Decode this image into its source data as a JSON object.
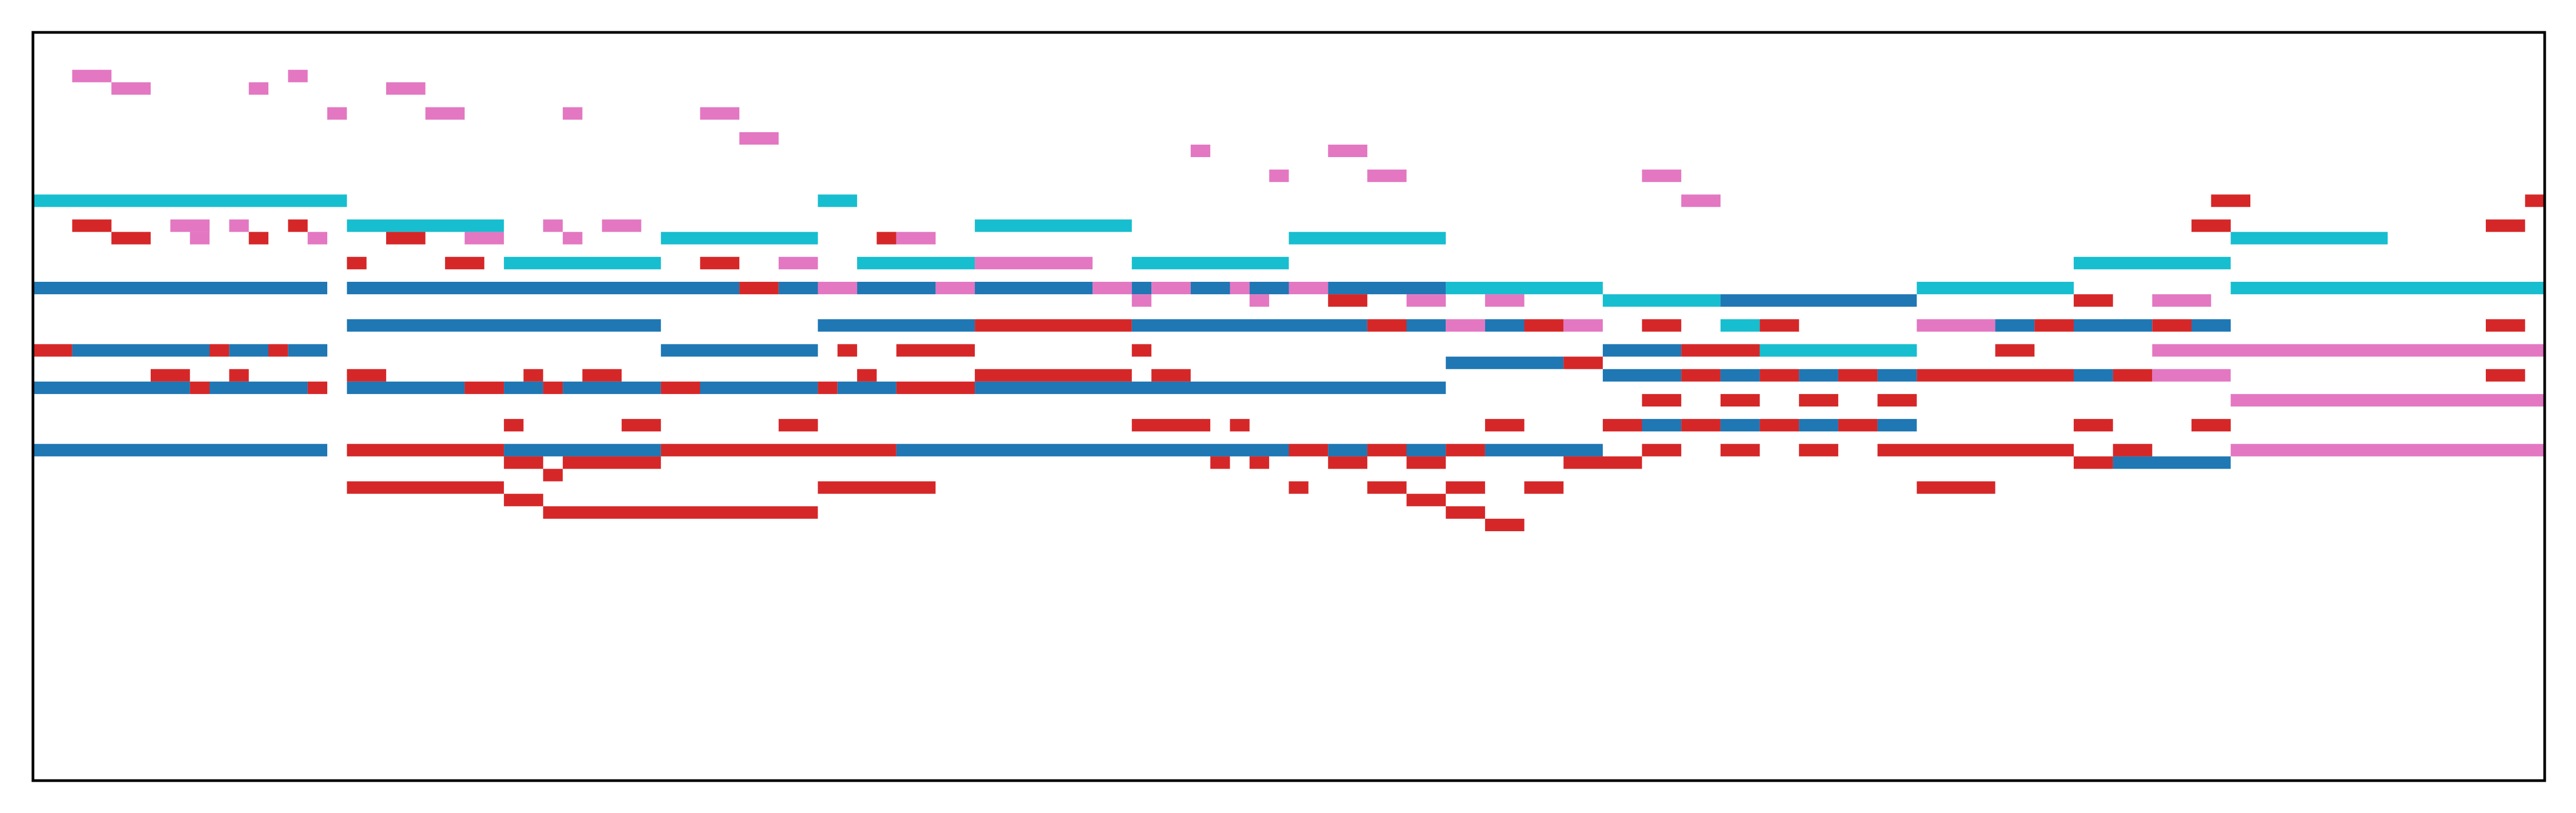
{
  "chart_data": {
    "type": "heatmap",
    "subtype": "piano-roll",
    "title": "",
    "xlabel": "",
    "ylabel": "",
    "axes_visible": false,
    "ticks_visible": false,
    "grid": false,
    "legend": "none",
    "xlim": [
      0,
      128
    ],
    "ylim": [
      0,
      60
    ],
    "y_direction": "down",
    "colors": {
      "pink": "#e377c2",
      "cyan": "#17becf",
      "red": "#d62728",
      "blue": "#1f77b4",
      "frame": "#000000",
      "background": "#ffffff"
    },
    "notes": [
      {
        "x0": 2,
        "x1": 4,
        "y": 3,
        "c": "pink"
      },
      {
        "x0": 4,
        "x1": 6,
        "y": 4,
        "c": "pink"
      },
      {
        "x0": 11,
        "x1": 12,
        "y": 4,
        "c": "pink"
      },
      {
        "x0": 13,
        "x1": 14,
        "y": 3,
        "c": "pink"
      },
      {
        "x0": 18,
        "x1": 20,
        "y": 4,
        "c": "pink"
      },
      {
        "x0": 15,
        "x1": 16,
        "y": 6,
        "c": "pink"
      },
      {
        "x0": 20,
        "x1": 22,
        "y": 6,
        "c": "pink"
      },
      {
        "x0": 27,
        "x1": 28,
        "y": 6,
        "c": "pink"
      },
      {
        "x0": 34,
        "x1": 36,
        "y": 6,
        "c": "pink"
      },
      {
        "x0": 36,
        "x1": 38,
        "y": 8,
        "c": "pink"
      },
      {
        "x0": 59,
        "x1": 60,
        "y": 9,
        "c": "pink"
      },
      {
        "x0": 66,
        "x1": 68,
        "y": 9,
        "c": "pink"
      },
      {
        "x0": 63,
        "x1": 64,
        "y": 11,
        "c": "pink"
      },
      {
        "x0": 68,
        "x1": 70,
        "y": 11,
        "c": "pink"
      },
      {
        "x0": 82,
        "x1": 84,
        "y": 11,
        "c": "pink"
      },
      {
        "x0": 84,
        "x1": 86,
        "y": 13,
        "c": "pink"
      },
      {
        "x0": 0,
        "x1": 16,
        "y": 13,
        "c": "cyan"
      },
      {
        "x0": 40,
        "x1": 42,
        "y": 13,
        "c": "cyan"
      },
      {
        "x0": 16,
        "x1": 24,
        "y": 15,
        "c": "cyan"
      },
      {
        "x0": 48,
        "x1": 56,
        "y": 15,
        "c": "cyan"
      },
      {
        "x0": 32,
        "x1": 40,
        "y": 16,
        "c": "cyan"
      },
      {
        "x0": 64,
        "x1": 72,
        "y": 16,
        "c": "cyan"
      },
      {
        "x0": 112,
        "x1": 120,
        "y": 16,
        "c": "cyan"
      },
      {
        "x0": 24,
        "x1": 32,
        "y": 18,
        "c": "cyan"
      },
      {
        "x0": 42,
        "x1": 48,
        "y": 18,
        "c": "cyan"
      },
      {
        "x0": 56,
        "x1": 64,
        "y": 18,
        "c": "cyan"
      },
      {
        "x0": 104,
        "x1": 112,
        "y": 18,
        "c": "cyan"
      },
      {
        "x0": 72,
        "x1": 80,
        "y": 20,
        "c": "cyan"
      },
      {
        "x0": 96,
        "x1": 104,
        "y": 20,
        "c": "cyan"
      },
      {
        "x0": 112,
        "x1": 128,
        "y": 20,
        "c": "cyan"
      },
      {
        "x0": 80,
        "x1": 86,
        "y": 21,
        "c": "cyan"
      },
      {
        "x0": 86,
        "x1": 88,
        "y": 23,
        "c": "cyan"
      },
      {
        "x0": 88,
        "x1": 96,
        "y": 25,
        "c": "cyan"
      },
      {
        "x0": 2,
        "x1": 4,
        "y": 15,
        "c": "red"
      },
      {
        "x0": 7,
        "x1": 9,
        "y": 15,
        "c": "pink"
      },
      {
        "x0": 10,
        "x1": 11,
        "y": 15,
        "c": "pink"
      },
      {
        "x0": 13,
        "x1": 14,
        "y": 15,
        "c": "red"
      },
      {
        "x0": 26,
        "x1": 27,
        "y": 15,
        "c": "pink"
      },
      {
        "x0": 29,
        "x1": 31,
        "y": 15,
        "c": "pink"
      },
      {
        "x0": 110,
        "x1": 112,
        "y": 15,
        "c": "red"
      },
      {
        "x0": 125,
        "x1": 127,
        "y": 15,
        "c": "red"
      },
      {
        "x0": 111,
        "x1": 113,
        "y": 13,
        "c": "red"
      },
      {
        "x0": 127,
        "x1": 129,
        "y": 13,
        "c": "red"
      },
      {
        "x0": 4,
        "x1": 6,
        "y": 16,
        "c": "red"
      },
      {
        "x0": 8,
        "x1": 9,
        "y": 16,
        "c": "pink"
      },
      {
        "x0": 11,
        "x1": 12,
        "y": 16,
        "c": "red"
      },
      {
        "x0": 14,
        "x1": 15,
        "y": 16,
        "c": "pink"
      },
      {
        "x0": 18,
        "x1": 20,
        "y": 16,
        "c": "red"
      },
      {
        "x0": 22,
        "x1": 24,
        "y": 16,
        "c": "pink"
      },
      {
        "x0": 27,
        "x1": 28,
        "y": 16,
        "c": "pink"
      },
      {
        "x0": 43,
        "x1": 44,
        "y": 16,
        "c": "red"
      },
      {
        "x0": 44,
        "x1": 46,
        "y": 16,
        "c": "pink"
      },
      {
        "x0": 16,
        "x1": 17,
        "y": 18,
        "c": "red"
      },
      {
        "x0": 21,
        "x1": 23,
        "y": 18,
        "c": "red"
      },
      {
        "x0": 34,
        "x1": 36,
        "y": 18,
        "c": "red"
      },
      {
        "x0": 38,
        "x1": 40,
        "y": 18,
        "c": "pink"
      },
      {
        "x0": 48,
        "x1": 54,
        "y": 18,
        "c": "pink"
      },
      {
        "x0": 0,
        "x1": 15,
        "y": 20,
        "c": "blue"
      },
      {
        "x0": 16,
        "x1": 36,
        "y": 20,
        "c": "blue"
      },
      {
        "x0": 36,
        "x1": 38,
        "y": 20,
        "c": "red"
      },
      {
        "x0": 38,
        "x1": 40,
        "y": 20,
        "c": "blue"
      },
      {
        "x0": 40,
        "x1": 42,
        "y": 20,
        "c": "pink"
      },
      {
        "x0": 42,
        "x1": 46,
        "y": 20,
        "c": "blue"
      },
      {
        "x0": 46,
        "x1": 48,
        "y": 20,
        "c": "pink"
      },
      {
        "x0": 48,
        "x1": 54,
        "y": 20,
        "c": "blue"
      },
      {
        "x0": 54,
        "x1": 56,
        "y": 20,
        "c": "pink"
      },
      {
        "x0": 56,
        "x1": 57,
        "y": 20,
        "c": "blue"
      },
      {
        "x0": 57,
        "x1": 59,
        "y": 20,
        "c": "pink"
      },
      {
        "x0": 59,
        "x1": 61,
        "y": 20,
        "c": "blue"
      },
      {
        "x0": 61,
        "x1": 62,
        "y": 20,
        "c": "pink"
      },
      {
        "x0": 62,
        "x1": 64,
        "y": 20,
        "c": "blue"
      },
      {
        "x0": 64,
        "x1": 66,
        "y": 20,
        "c": "pink"
      },
      {
        "x0": 66,
        "x1": 72,
        "y": 20,
        "c": "blue"
      },
      {
        "x0": 56,
        "x1": 57,
        "y": 21,
        "c": "pink"
      },
      {
        "x0": 62,
        "x1": 63,
        "y": 21,
        "c": "pink"
      },
      {
        "x0": 66,
        "x1": 68,
        "y": 21,
        "c": "red"
      },
      {
        "x0": 70,
        "x1": 72,
        "y": 21,
        "c": "pink"
      },
      {
        "x0": 74,
        "x1": 76,
        "y": 21,
        "c": "pink"
      },
      {
        "x0": 86,
        "x1": 96,
        "y": 21,
        "c": "blue"
      },
      {
        "x0": 104,
        "x1": 106,
        "y": 21,
        "c": "red"
      },
      {
        "x0": 108,
        "x1": 111,
        "y": 21,
        "c": "pink"
      },
      {
        "x0": 16,
        "x1": 32,
        "y": 23,
        "c": "blue"
      },
      {
        "x0": 40,
        "x1": 48,
        "y": 23,
        "c": "blue"
      },
      {
        "x0": 48,
        "x1": 56,
        "y": 23,
        "c": "red"
      },
      {
        "x0": 56,
        "x1": 68,
        "y": 23,
        "c": "blue"
      },
      {
        "x0": 68,
        "x1": 70,
        "y": 23,
        "c": "red"
      },
      {
        "x0": 70,
        "x1": 72,
        "y": 23,
        "c": "blue"
      },
      {
        "x0": 72,
        "x1": 74,
        "y": 23,
        "c": "pink"
      },
      {
        "x0": 74,
        "x1": 76,
        "y": 23,
        "c": "blue"
      },
      {
        "x0": 76,
        "x1": 78,
        "y": 23,
        "c": "red"
      },
      {
        "x0": 78,
        "x1": 80,
        "y": 23,
        "c": "pink"
      },
      {
        "x0": 82,
        "x1": 84,
        "y": 23,
        "c": "red"
      },
      {
        "x0": 88,
        "x1": 90,
        "y": 23,
        "c": "red"
      },
      {
        "x0": 96,
        "x1": 100,
        "y": 23,
        "c": "pink"
      },
      {
        "x0": 100,
        "x1": 102,
        "y": 23,
        "c": "blue"
      },
      {
        "x0": 102,
        "x1": 104,
        "y": 23,
        "c": "red"
      },
      {
        "x0": 104,
        "x1": 108,
        "y": 23,
        "c": "blue"
      },
      {
        "x0": 108,
        "x1": 110,
        "y": 23,
        "c": "red"
      },
      {
        "x0": 110,
        "x1": 112,
        "y": 23,
        "c": "blue"
      },
      {
        "x0": 125,
        "x1": 127,
        "y": 23,
        "c": "red"
      },
      {
        "x0": 0,
        "x1": 2,
        "y": 25,
        "c": "red"
      },
      {
        "x0": 2,
        "x1": 9,
        "y": 25,
        "c": "blue"
      },
      {
        "x0": 9,
        "x1": 10,
        "y": 25,
        "c": "red"
      },
      {
        "x0": 10,
        "x1": 12,
        "y": 25,
        "c": "blue"
      },
      {
        "x0": 12,
        "x1": 13,
        "y": 25,
        "c": "red"
      },
      {
        "x0": 13,
        "x1": 15,
        "y": 25,
        "c": "blue"
      },
      {
        "x0": 32,
        "x1": 40,
        "y": 25,
        "c": "blue"
      },
      {
        "x0": 41,
        "x1": 42,
        "y": 25,
        "c": "red"
      },
      {
        "x0": 44,
        "x1": 48,
        "y": 25,
        "c": "red"
      },
      {
        "x0": 56,
        "x1": 57,
        "y": 25,
        "c": "red"
      },
      {
        "x0": 80,
        "x1": 84,
        "y": 25,
        "c": "blue"
      },
      {
        "x0": 84,
        "x1": 88,
        "y": 25,
        "c": "red"
      },
      {
        "x0": 88,
        "x1": 96,
        "y": 25,
        "c": "cyan"
      },
      {
        "x0": 100,
        "x1": 102,
        "y": 25,
        "c": "red"
      },
      {
        "x0": 108,
        "x1": 128,
        "y": 25,
        "c": "pink"
      },
      {
        "x0": 72,
        "x1": 78,
        "y": 26,
        "c": "blue"
      },
      {
        "x0": 78,
        "x1": 80,
        "y": 26,
        "c": "red"
      },
      {
        "x0": 6,
        "x1": 8,
        "y": 27,
        "c": "red"
      },
      {
        "x0": 10,
        "x1": 11,
        "y": 27,
        "c": "red"
      },
      {
        "x0": 16,
        "x1": 18,
        "y": 27,
        "c": "red"
      },
      {
        "x0": 25,
        "x1": 26,
        "y": 27,
        "c": "red"
      },
      {
        "x0": 28,
        "x1": 30,
        "y": 27,
        "c": "red"
      },
      {
        "x0": 42,
        "x1": 43,
        "y": 27,
        "c": "red"
      },
      {
        "x0": 48,
        "x1": 56,
        "y": 27,
        "c": "red"
      },
      {
        "x0": 57,
        "x1": 59,
        "y": 27,
        "c": "red"
      },
      {
        "x0": 80,
        "x1": 84,
        "y": 27,
        "c": "blue"
      },
      {
        "x0": 84,
        "x1": 86,
        "y": 27,
        "c": "red"
      },
      {
        "x0": 86,
        "x1": 88,
        "y": 27,
        "c": "blue"
      },
      {
        "x0": 88,
        "x1": 90,
        "y": 27,
        "c": "red"
      },
      {
        "x0": 90,
        "x1": 92,
        "y": 27,
        "c": "blue"
      },
      {
        "x0": 92,
        "x1": 94,
        "y": 27,
        "c": "red"
      },
      {
        "x0": 94,
        "x1": 96,
        "y": 27,
        "c": "blue"
      },
      {
        "x0": 96,
        "x1": 104,
        "y": 27,
        "c": "red"
      },
      {
        "x0": 104,
        "x1": 106,
        "y": 27,
        "c": "blue"
      },
      {
        "x0": 106,
        "x1": 108,
        "y": 27,
        "c": "red"
      },
      {
        "x0": 108,
        "x1": 112,
        "y": 27,
        "c": "pink"
      },
      {
        "x0": 125,
        "x1": 127,
        "y": 27,
        "c": "red"
      },
      {
        "x0": 0,
        "x1": 8,
        "y": 28,
        "c": "blue"
      },
      {
        "x0": 8,
        "x1": 9,
        "y": 28,
        "c": "red"
      },
      {
        "x0": 9,
        "x1": 14,
        "y": 28,
        "c": "blue"
      },
      {
        "x0": 14,
        "x1": 15,
        "y": 28,
        "c": "red"
      },
      {
        "x0": 16,
        "x1": 22,
        "y": 28,
        "c": "blue"
      },
      {
        "x0": 22,
        "x1": 24,
        "y": 28,
        "c": "red"
      },
      {
        "x0": 24,
        "x1": 26,
        "y": 28,
        "c": "blue"
      },
      {
        "x0": 26,
        "x1": 27,
        "y": 28,
        "c": "red"
      },
      {
        "x0": 27,
        "x1": 32,
        "y": 28,
        "c": "blue"
      },
      {
        "x0": 32,
        "x1": 34,
        "y": 28,
        "c": "red"
      },
      {
        "x0": 34,
        "x1": 40,
        "y": 28,
        "c": "blue"
      },
      {
        "x0": 40,
        "x1": 41,
        "y": 28,
        "c": "red"
      },
      {
        "x0": 41,
        "x1": 44,
        "y": 28,
        "c": "blue"
      },
      {
        "x0": 44,
        "x1": 48,
        "y": 28,
        "c": "red"
      },
      {
        "x0": 48,
        "x1": 72,
        "y": 28,
        "c": "blue"
      },
      {
        "x0": 82,
        "x1": 84,
        "y": 29,
        "c": "red"
      },
      {
        "x0": 86,
        "x1": 88,
        "y": 29,
        "c": "red"
      },
      {
        "x0": 90,
        "x1": 92,
        "y": 29,
        "c": "red"
      },
      {
        "x0": 94,
        "x1": 96,
        "y": 29,
        "c": "red"
      },
      {
        "x0": 112,
        "x1": 128,
        "y": 29,
        "c": "pink"
      },
      {
        "x0": 24,
        "x1": 25,
        "y": 31,
        "c": "red"
      },
      {
        "x0": 30,
        "x1": 32,
        "y": 31,
        "c": "red"
      },
      {
        "x0": 38,
        "x1": 40,
        "y": 31,
        "c": "red"
      },
      {
        "x0": 56,
        "x1": 60,
        "y": 31,
        "c": "red"
      },
      {
        "x0": 61,
        "x1": 62,
        "y": 31,
        "c": "red"
      },
      {
        "x0": 74,
        "x1": 76,
        "y": 31,
        "c": "red"
      },
      {
        "x0": 80,
        "x1": 82,
        "y": 31,
        "c": "red"
      },
      {
        "x0": 82,
        "x1": 84,
        "y": 31,
        "c": "blue"
      },
      {
        "x0": 84,
        "x1": 86,
        "y": 31,
        "c": "red"
      },
      {
        "x0": 86,
        "x1": 88,
        "y": 31,
        "c": "blue"
      },
      {
        "x0": 88,
        "x1": 90,
        "y": 31,
        "c": "red"
      },
      {
        "x0": 90,
        "x1": 92,
        "y": 31,
        "c": "blue"
      },
      {
        "x0": 92,
        "x1": 94,
        "y": 31,
        "c": "red"
      },
      {
        "x0": 94,
        "x1": 96,
        "y": 31,
        "c": "blue"
      },
      {
        "x0": 104,
        "x1": 106,
        "y": 31,
        "c": "red"
      },
      {
        "x0": 110,
        "x1": 112,
        "y": 31,
        "c": "red"
      },
      {
        "x0": 0,
        "x1": 15,
        "y": 33,
        "c": "blue"
      },
      {
        "x0": 16,
        "x1": 24,
        "y": 33,
        "c": "red"
      },
      {
        "x0": 24,
        "x1": 32,
        "y": 33,
        "c": "blue"
      },
      {
        "x0": 32,
        "x1": 44,
        "y": 33,
        "c": "red"
      },
      {
        "x0": 44,
        "x1": 64,
        "y": 33,
        "c": "blue"
      },
      {
        "x0": 64,
        "x1": 66,
        "y": 33,
        "c": "red"
      },
      {
        "x0": 66,
        "x1": 68,
        "y": 33,
        "c": "blue"
      },
      {
        "x0": 68,
        "x1": 70,
        "y": 33,
        "c": "red"
      },
      {
        "x0": 70,
        "x1": 72,
        "y": 33,
        "c": "blue"
      },
      {
        "x0": 72,
        "x1": 74,
        "y": 33,
        "c": "red"
      },
      {
        "x0": 74,
        "x1": 80,
        "y": 33,
        "c": "blue"
      },
      {
        "x0": 82,
        "x1": 84,
        "y": 33,
        "c": "red"
      },
      {
        "x0": 86,
        "x1": 88,
        "y": 33,
        "c": "red"
      },
      {
        "x0": 90,
        "x1": 92,
        "y": 33,
        "c": "red"
      },
      {
        "x0": 94,
        "x1": 104,
        "y": 33,
        "c": "red"
      },
      {
        "x0": 106,
        "x1": 108,
        "y": 33,
        "c": "red"
      },
      {
        "x0": 112,
        "x1": 128,
        "y": 33,
        "c": "pink"
      },
      {
        "x0": 24,
        "x1": 26,
        "y": 34,
        "c": "red"
      },
      {
        "x0": 27,
        "x1": 32,
        "y": 34,
        "c": "red"
      },
      {
        "x0": 60,
        "x1": 61,
        "y": 34,
        "c": "red"
      },
      {
        "x0": 62,
        "x1": 63,
        "y": 34,
        "c": "red"
      },
      {
        "x0": 66,
        "x1": 68,
        "y": 34,
        "c": "red"
      },
      {
        "x0": 70,
        "x1": 72,
        "y": 34,
        "c": "red"
      },
      {
        "x0": 78,
        "x1": 82,
        "y": 34,
        "c": "red"
      },
      {
        "x0": 104,
        "x1": 106,
        "y": 34,
        "c": "red"
      },
      {
        "x0": 106,
        "x1": 112,
        "y": 34,
        "c": "blue"
      },
      {
        "x0": 26,
        "x1": 27,
        "y": 35,
        "c": "red"
      },
      {
        "x0": 16,
        "x1": 24,
        "y": 36,
        "c": "red"
      },
      {
        "x0": 40,
        "x1": 46,
        "y": 36,
        "c": "red"
      },
      {
        "x0": 64,
        "x1": 65,
        "y": 36,
        "c": "red"
      },
      {
        "x0": 68,
        "x1": 70,
        "y": 36,
        "c": "red"
      },
      {
        "x0": 72,
        "x1": 74,
        "y": 36,
        "c": "red"
      },
      {
        "x0": 76,
        "x1": 78,
        "y": 36,
        "c": "red"
      },
      {
        "x0": 96,
        "x1": 100,
        "y": 36,
        "c": "red"
      },
      {
        "x0": 24,
        "x1": 26,
        "y": 37,
        "c": "red"
      },
      {
        "x0": 70,
        "x1": 72,
        "y": 37,
        "c": "red"
      },
      {
        "x0": 26,
        "x1": 40,
        "y": 38,
        "c": "red"
      },
      {
        "x0": 72,
        "x1": 74,
        "y": 38,
        "c": "red"
      },
      {
        "x0": 74,
        "x1": 76,
        "y": 39,
        "c": "red"
      }
    ]
  }
}
